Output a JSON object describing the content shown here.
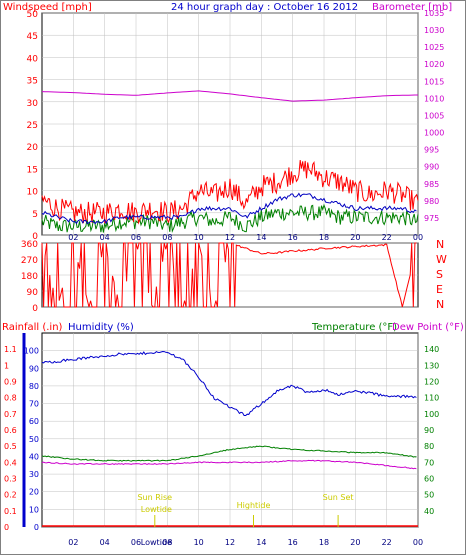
{
  "header": {
    "windspeed_label": "Windspeed [mph]",
    "title": "24 hour graph day : October 16 2012",
    "barometer_label": "Barometer [mb]"
  },
  "colors": {
    "wind": "#ff0000",
    "avg_wind": "#0000c0",
    "low_wind": "#008000",
    "barometer": "#cc00cc",
    "direction": "#ff0000",
    "humidity": "#0000cc",
    "temperature": "#008000",
    "dewpoint": "#cc00cc",
    "rain": "#ff0000",
    "axis_left_blue": "#0000cc",
    "axis_right_green": "#008000",
    "sun_text": "#cccc00",
    "grid": "#c0c0c0"
  },
  "footer": {
    "rainfall_label": "Rainfall (.in)",
    "humidity_label": "Humidity (%)",
    "temperature_label": "Temperature (°F)",
    "dewpoint_label": "Dew Point (°F)",
    "sunrise_label": "Sun Rise",
    "lowtide_label": "Lowtide",
    "hightide_label": "Hightide",
    "sunset_label": "Sun Set",
    "lowtide_bottom": "Lowtide"
  },
  "chart_data": [
    {
      "type": "line",
      "name": "wind_barometer",
      "x_ticks": [
        "02",
        "04",
        "06",
        "08",
        "10",
        "12",
        "14",
        "16",
        "18",
        "20",
        "22",
        "00"
      ],
      "left_axis": {
        "label": "Windspeed [mph]",
        "ylim": [
          0,
          50
        ],
        "ticks": [
          0,
          5,
          10,
          15,
          20,
          25,
          30,
          35,
          40,
          45,
          50
        ]
      },
      "right_axis": {
        "label": "Barometer [mb]",
        "ylim": [
          970,
          1035
        ],
        "ticks": [
          975,
          980,
          985,
          990,
          995,
          1000,
          1005,
          1010,
          1015,
          1020,
          1025,
          1030,
          1035
        ]
      },
      "series": [
        {
          "name": "Windspeed",
          "axis": "left",
          "x": [
            0,
            1,
            2,
            3,
            4,
            5,
            6,
            7,
            8,
            9,
            10,
            11,
            12,
            13,
            14,
            15,
            16,
            17,
            18,
            19,
            20,
            21,
            22,
            23,
            24
          ],
          "values": [
            8,
            6,
            5,
            5,
            5,
            6,
            5,
            6,
            5,
            6,
            10,
            9,
            11,
            7,
            11,
            12,
            14,
            15,
            13,
            12,
            10,
            9,
            10,
            9,
            7
          ]
        },
        {
          "name": "Average",
          "axis": "left",
          "x": [
            0,
            1,
            2,
            3,
            4,
            5,
            6,
            7,
            8,
            9,
            10,
            11,
            12,
            13,
            14,
            15,
            16,
            17,
            18,
            19,
            20,
            21,
            22,
            23,
            24
          ],
          "values": [
            5,
            4,
            3,
            3,
            3,
            4,
            4,
            4,
            4,
            4,
            6,
            6,
            6,
            4,
            6,
            8,
            9,
            9,
            8,
            7,
            6,
            6,
            6,
            6,
            5
          ]
        },
        {
          "name": "Low",
          "axis": "left",
          "x": [
            0,
            1,
            2,
            3,
            4,
            5,
            6,
            7,
            8,
            9,
            10,
            11,
            12,
            13,
            14,
            15,
            16,
            17,
            18,
            19,
            20,
            21,
            22,
            23,
            24
          ],
          "values": [
            3,
            2,
            2,
            2,
            2,
            3,
            3,
            3,
            2,
            3,
            4,
            3,
            4,
            2,
            4,
            5,
            5,
            5,
            5,
            4,
            4,
            4,
            4,
            4,
            3
          ]
        },
        {
          "name": "Barometer",
          "axis": "right",
          "x": [
            0,
            2,
            4,
            6,
            8,
            10,
            12,
            14,
            16,
            18,
            20,
            22,
            24
          ],
          "values": [
            1012.0,
            1011.7,
            1011.2,
            1010.9,
            1011.6,
            1012.2,
            1011.3,
            1010.2,
            1009.2,
            1009.5,
            1010.2,
            1010.8,
            1011.0
          ]
        }
      ]
    },
    {
      "type": "line",
      "name": "wind_direction",
      "left_axis": {
        "ylim": [
          0,
          360
        ],
        "ticks": [
          0,
          90,
          180,
          270,
          360
        ]
      },
      "right_axis_labels": [
        "N",
        "W",
        "S",
        "E",
        "N"
      ],
      "series": [
        {
          "name": "Direction",
          "x": [
            0,
            1,
            2,
            3,
            4,
            5,
            6,
            7,
            8,
            9,
            10,
            11,
            12,
            13,
            14,
            15,
            16,
            17,
            18,
            19,
            20,
            21,
            22,
            23,
            24
          ],
          "values": [
            360,
            0,
            360,
            0,
            350,
            0,
            360,
            10,
            360,
            0,
            360,
            0,
            360,
            330,
            300,
            305,
            315,
            320,
            330,
            335,
            340,
            345,
            350,
            0,
            360
          ]
        }
      ]
    },
    {
      "type": "line",
      "name": "humidity_temperature_dewpoint_rain",
      "x_ticks": [
        "02",
        "04",
        "06",
        "08",
        "10",
        "12",
        "14",
        "16",
        "18",
        "20",
        "22",
        "00"
      ],
      "left_axis_rain": {
        "label": "Rainfall (.in)",
        "ylim": [
          0,
          1.2
        ],
        "ticks": [
          0,
          0.1,
          0.2,
          0.3,
          0.4,
          0.5,
          0.6,
          0.7,
          0.8,
          0.9,
          1,
          1.1
        ]
      },
      "left_axis_humidity": {
        "label": "Humidity (%)",
        "ylim": [
          0,
          110
        ],
        "ticks": [
          0,
          10,
          20,
          30,
          40,
          50,
          60,
          70,
          80,
          90,
          100
        ]
      },
      "right_axis": {
        "label": "Temperature (°F)",
        "ylim": [
          30,
          150
        ],
        "ticks": [
          40,
          50,
          60,
          70,
          80,
          90,
          100,
          110,
          120,
          130,
          140
        ]
      },
      "series": [
        {
          "name": "Humidity",
          "axis": "humidity",
          "x": [
            0,
            1,
            2,
            3,
            4,
            5,
            6,
            7,
            8,
            9,
            10,
            11,
            12,
            13,
            14,
            15,
            16,
            17,
            18,
            19,
            20,
            21,
            22,
            23,
            24
          ],
          "values": [
            93,
            94,
            95,
            96,
            97,
            98,
            98,
            99,
            99,
            95,
            85,
            73,
            68,
            63,
            70,
            77,
            80,
            76,
            78,
            75,
            77,
            76,
            74,
            74,
            74
          ]
        },
        {
          "name": "Temperature",
          "axis": "right",
          "x": [
            0,
            2,
            4,
            6,
            8,
            10,
            12,
            14,
            16,
            18,
            20,
            22,
            24
          ],
          "values": [
            74,
            72,
            71,
            71,
            71,
            74,
            78,
            80,
            78,
            77,
            76,
            76,
            73
          ]
        },
        {
          "name": "Dew Point",
          "axis": "right",
          "x": [
            0,
            2,
            4,
            6,
            8,
            10,
            12,
            14,
            16,
            18,
            20,
            22,
            24
          ],
          "values": [
            70,
            69,
            69,
            69,
            69,
            70,
            70,
            70,
            71,
            71,
            70,
            68,
            66
          ]
        },
        {
          "name": "Rainfall",
          "axis": "rain",
          "x": [
            0,
            24
          ],
          "values": [
            0,
            0
          ]
        }
      ],
      "annotations": [
        {
          "label": "Sun Rise",
          "x": 7.2
        },
        {
          "label": "Lowtide",
          "x": 7.3
        },
        {
          "label": "Hightide",
          "x": 13.5
        },
        {
          "label": "Sun Set",
          "x": 18.9
        }
      ]
    }
  ]
}
